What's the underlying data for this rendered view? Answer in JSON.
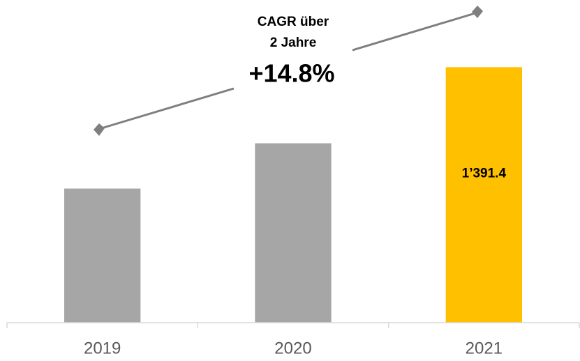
{
  "chart_data": {
    "type": "bar",
    "categories": [
      "2019",
      "2020",
      "2021"
    ],
    "values": [
      1055.8,
      1181,
      1391.4
    ],
    "value_labels": [
      null,
      null,
      "1’391.4"
    ],
    "colors": [
      "#a6a6a6",
      "#a6a6a6",
      "#ffc000"
    ],
    "ylim": [
      685,
      1500
    ],
    "annotations": [
      "CAGR über",
      "2 Jahre",
      "+14.8%"
    ]
  }
}
